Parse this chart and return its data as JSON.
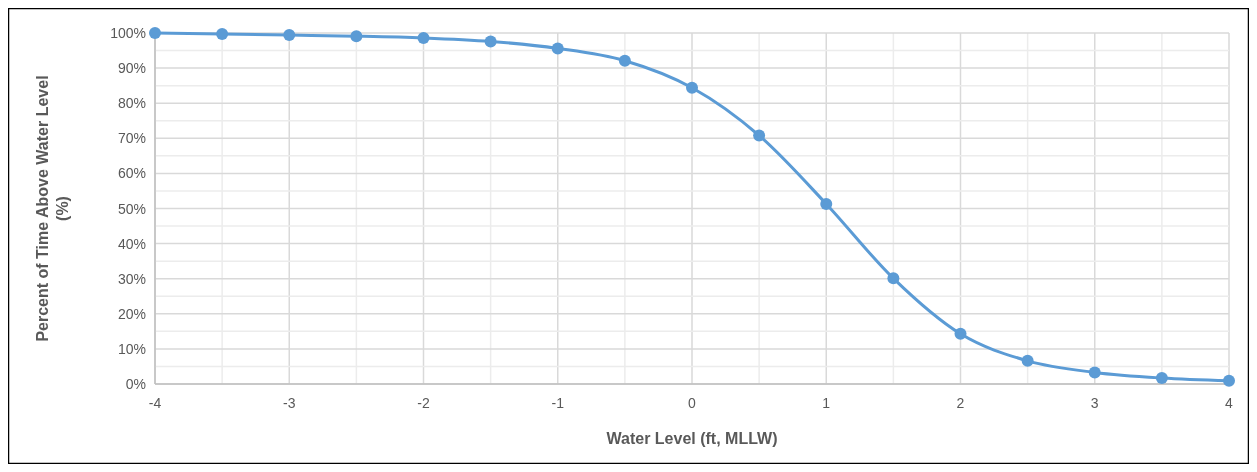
{
  "chart_data": {
    "type": "line",
    "xlabel": "Water Level (ft, MLLW)",
    "ylabel": "Percent of Time Above Water Level (%)",
    "x": [
      -4,
      -3.5,
      -3,
      -2.5,
      -2,
      -1.5,
      -1,
      -0.5,
      0,
      0.5,
      1,
      1.5,
      2,
      2.5,
      3,
      3.5,
      4
    ],
    "series": [
      {
        "color": "#5b9bd5",
        "values": [
          100,
          99.7,
          99.4,
          99.1,
          98.6,
          97.6,
          95.6,
          92.1,
          84.4,
          70.8,
          51.3,
          30.1,
          14.3,
          6.6,
          3.3,
          1.7,
          0.9
        ]
      }
    ],
    "xlim": [
      -4,
      4
    ],
    "xticks": [
      -4,
      {
        "value": -3.5,
        "label": null
      },
      -3,
      {
        "value": -2.5,
        "label": null
      },
      -2,
      {
        "value": -1.5,
        "label": null
      },
      -1,
      {
        "value": -0.5,
        "label": null
      },
      0,
      {
        "value": 0.5,
        "label": null
      },
      1,
      {
        "value": 1.5,
        "label": null
      },
      2,
      {
        "value": 2.5,
        "label": null
      },
      3,
      {
        "value": 3.5,
        "label": null
      },
      4
    ],
    "ylim": [
      0,
      100
    ],
    "yticks": [
      {
        "value": 0,
        "label": "0%"
      },
      {
        "value": 5,
        "label": null
      },
      {
        "value": 10,
        "label": "10%"
      },
      {
        "value": 15,
        "label": null
      },
      {
        "value": 20,
        "label": "20%"
      },
      {
        "value": 25,
        "label": null
      },
      {
        "value": 30,
        "label": "30%"
      },
      {
        "value": 35,
        "label": null
      },
      {
        "value": 40,
        "label": "40%"
      },
      {
        "value": 45,
        "label": null
      },
      {
        "value": 50,
        "label": "50%"
      },
      {
        "value": 55,
        "label": null
      },
      {
        "value": 60,
        "label": "60%"
      },
      {
        "value": 65,
        "label": null
      },
      {
        "value": 70,
        "label": "70%"
      },
      {
        "value": 75,
        "label": null
      },
      {
        "value": 80,
        "label": "80%"
      },
      {
        "value": 85,
        "label": null
      },
      {
        "value": 90,
        "label": "90%"
      },
      {
        "value": 95,
        "label": null
      },
      {
        "value": 100,
        "label": "100%"
      }
    ],
    "grid": true,
    "marker": "circle",
    "line_style": "solid"
  }
}
